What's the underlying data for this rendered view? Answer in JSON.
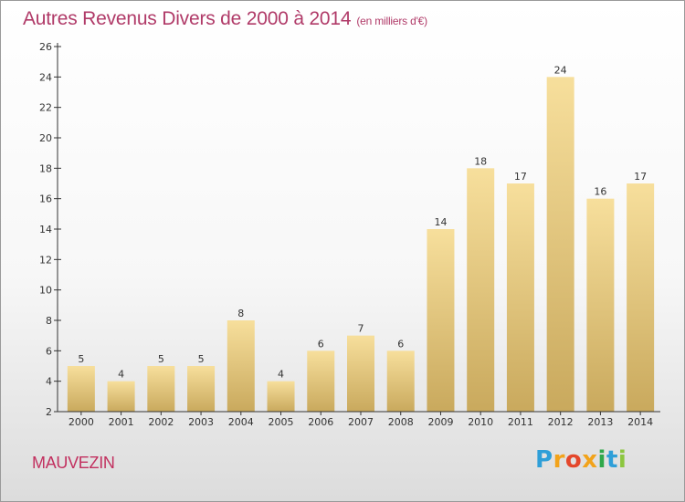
{
  "header": {
    "title": "Autres Revenus Divers de 2000 à 2014",
    "subtitle": "(en milliers d'€)"
  },
  "footer": {
    "location": "MAUVEZIN",
    "brand_letters": [
      "P",
      "r",
      "o",
      "x",
      "i",
      "t",
      "i"
    ],
    "brand_colors": [
      "#2f9fd8",
      "#f2a31b",
      "#e4472b",
      "#f2a31b",
      "#2fa84a",
      "#2f9fd8",
      "#8cc63f"
    ]
  },
  "colors": {
    "bar_top": "#f7df9c",
    "bar_bottom": "#c9a95d",
    "axis": "#333333",
    "label": "#333333"
  },
  "chart_data": {
    "type": "bar",
    "categories": [
      "2000",
      "2001",
      "2002",
      "2003",
      "2004",
      "2005",
      "2006",
      "2007",
      "2008",
      "2009",
      "2010",
      "2011",
      "2012",
      "2013",
      "2014"
    ],
    "values": [
      5,
      4,
      5,
      5,
      8,
      4,
      6,
      7,
      6,
      14,
      18,
      17,
      24,
      16,
      17
    ],
    "yticks": [
      2,
      4,
      6,
      8,
      10,
      12,
      14,
      16,
      18,
      20,
      22,
      24,
      26
    ],
    "ylim": [
      2,
      26
    ],
    "grid": false,
    "data_labels": true
  }
}
